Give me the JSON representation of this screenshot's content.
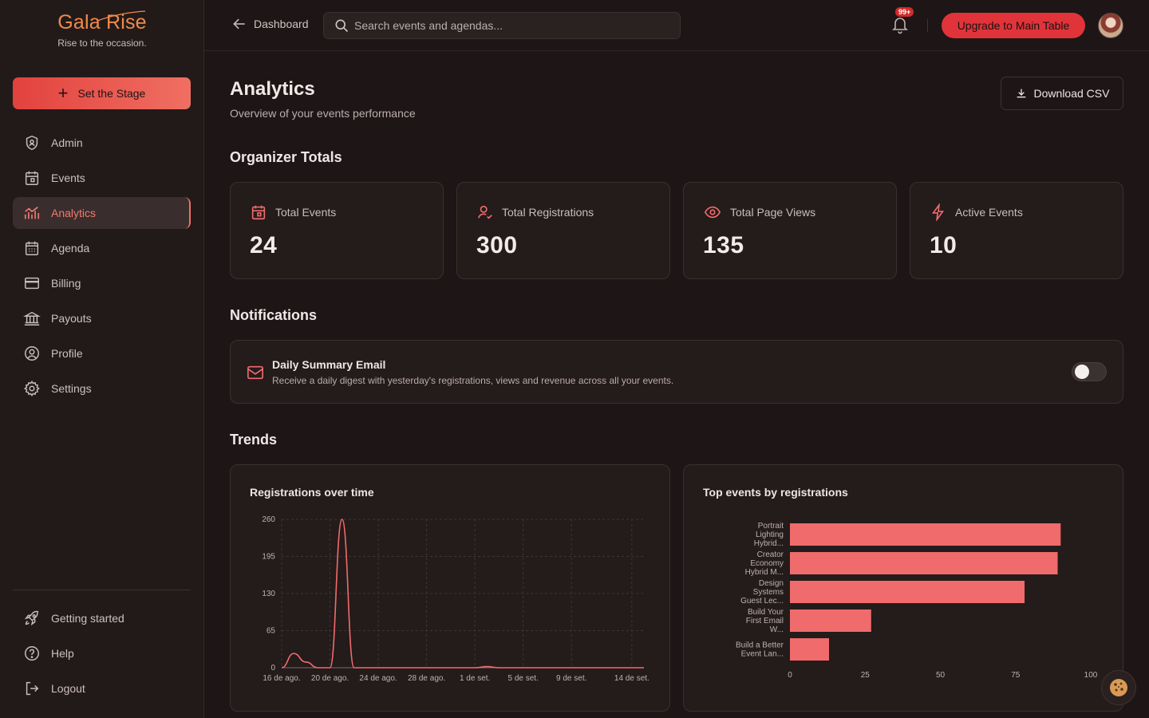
{
  "brand": {
    "name": "Gala Rise",
    "tagline": "Rise to the occasion."
  },
  "sidebar": {
    "cta_label": "Set the Stage",
    "items": [
      {
        "label": "Admin",
        "icon": "shield-icon",
        "active": false
      },
      {
        "label": "Events",
        "icon": "calendar-icon",
        "active": false
      },
      {
        "label": "Analytics",
        "icon": "analytics-icon",
        "active": true
      },
      {
        "label": "Agenda",
        "icon": "agenda-icon",
        "active": false
      },
      {
        "label": "Billing",
        "icon": "credit-card-icon",
        "active": false
      },
      {
        "label": "Payouts",
        "icon": "bank-icon",
        "active": false
      },
      {
        "label": "Profile",
        "icon": "user-circle-icon",
        "active": false
      },
      {
        "label": "Settings",
        "icon": "gear-icon",
        "active": false
      }
    ],
    "bottom_items": [
      {
        "label": "Getting started",
        "icon": "rocket-icon"
      },
      {
        "label": "Help",
        "icon": "help-icon"
      },
      {
        "label": "Logout",
        "icon": "logout-icon"
      }
    ]
  },
  "topbar": {
    "back_label": "Dashboard",
    "search_placeholder": "Search events and agendas...",
    "notification_badge": "99+",
    "upgrade_label": "Upgrade to Main Table"
  },
  "header": {
    "title": "Analytics",
    "subtitle": "Overview of your events performance",
    "download_label": "Download CSV"
  },
  "sections": {
    "totals": "Organizer Totals",
    "notifications": "Notifications",
    "trends": "Trends"
  },
  "stats": [
    {
      "label": "Total Events",
      "value": "24",
      "icon": "calendar-icon"
    },
    {
      "label": "Total Registrations",
      "value": "300",
      "icon": "user-check-icon"
    },
    {
      "label": "Total Page Views",
      "value": "135",
      "icon": "eye-icon"
    },
    {
      "label": "Active Events",
      "value": "10",
      "icon": "bolt-icon"
    }
  ],
  "notification": {
    "title": "Daily Summary Email",
    "description": "Receive a daily digest with yesterday's registrations, views and revenue across all your events.",
    "enabled": false
  },
  "colors": {
    "accent": "#f26b6b",
    "brand": "#f08a4b",
    "upgrade": "#e0343a"
  },
  "chart_data": [
    {
      "type": "line",
      "title": "Registrations over time",
      "x": [
        "16 de ago.",
        "17 de ago.",
        "18 de ago.",
        "19 de ago.",
        "20 de ago.",
        "21 de ago.",
        "22 de ago.",
        "23 de ago.",
        "24 de ago.",
        "25 de ago.",
        "26 de ago.",
        "27 de ago.",
        "28 de ago.",
        "29 de ago.",
        "30 de ago.",
        "31 de ago.",
        "1 de set.",
        "2 de set.",
        "3 de set.",
        "4 de set.",
        "5 de set.",
        "6 de set.",
        "7 de set.",
        "8 de set.",
        "9 de set.",
        "10 de set.",
        "11 de set.",
        "12 de set.",
        "13 de set.",
        "14 de set.",
        "15 de set."
      ],
      "x_tick_labels": [
        "16 de ago.",
        "20 de ago.",
        "24 de ago.",
        "28 de ago.",
        "1 de set.",
        "5 de set.",
        "9 de set.",
        "14 de set."
      ],
      "series": [
        {
          "values": [
            0,
            25,
            10,
            0,
            0,
            260,
            0,
            0,
            0,
            0,
            0,
            0,
            0,
            0,
            0,
            0,
            0,
            2,
            0,
            0,
            0,
            0,
            0,
            0,
            0,
            0,
            0,
            0,
            0,
            0,
            0
          ]
        }
      ],
      "y_ticks": [
        0,
        65,
        130,
        195,
        260
      ],
      "ylim": [
        0,
        260
      ],
      "grid": true
    },
    {
      "type": "bar",
      "orientation": "horizontal",
      "title": "Top events by registrations",
      "categories": [
        [
          "Portrait",
          "Lighting",
          "Hybrid..."
        ],
        [
          "Creator",
          "Economy",
          "Hybrid M..."
        ],
        [
          "Design",
          "Systems",
          "Guest Lec..."
        ],
        [
          "Build Your",
          "First Email",
          "W..."
        ],
        [
          "Build a Better",
          "Event Lan..."
        ]
      ],
      "values": [
        90,
        89,
        78,
        27,
        13
      ],
      "x_ticks": [
        0,
        25,
        50,
        75,
        100
      ],
      "xlim": [
        0,
        100
      ]
    }
  ]
}
